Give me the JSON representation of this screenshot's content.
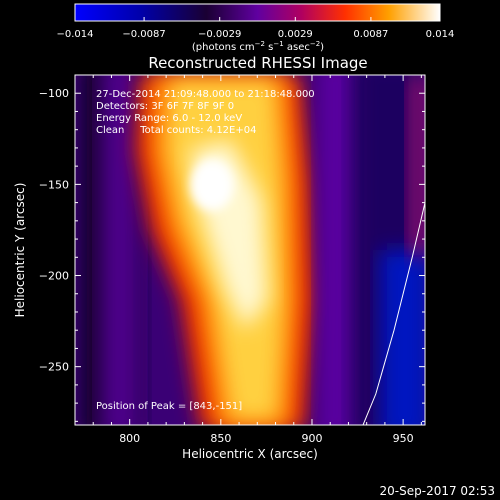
{
  "chart_data": {
    "type": "heatmap",
    "title": "Reconstructed RHESSI Image",
    "xlabel": "Heliocentric X (arcsec)",
    "ylabel": "Heliocentric Y (arcsec)",
    "xlim": [
      770,
      962
    ],
    "ylim": [
      -282,
      -90
    ],
    "x_ticks": [
      800,
      850,
      900,
      950
    ],
    "x_tick_labels": [
      "800",
      "850",
      "900",
      "950"
    ],
    "y_ticks": [
      -100,
      -150,
      -200,
      -250
    ],
    "y_tick_labels": [
      "−100",
      "−150",
      "−200",
      "−250"
    ],
    "colorbar": {
      "range": [
        -0.014,
        0.014
      ],
      "ticks": [
        -0.014,
        -0.0087,
        -0.0029,
        0.0029,
        0.0087,
        0.014
      ],
      "tick_labels": [
        "−0.014",
        "−0.0087",
        "−0.0029",
        "0.0029",
        "0.0087",
        "0.014"
      ],
      "units_html": "(photons cm<tspan baseline-shift='super' font-size='7'>−2</tspan> s<tspan baseline-shift='super' font-size='7'>−1</tspan> asec<tspan baseline-shift='super' font-size='7'>−2</tspan>)",
      "colors": [
        "#0000ff",
        "#0000aa",
        "#000040",
        "#1a0033",
        "#4d0099",
        "#8a0070",
        "#d11000",
        "#ff6000",
        "#ffb000",
        "#ffe060",
        "#ffffff"
      ]
    },
    "annotations": [
      "27-Dec-2014 21:09:48.000 to 21:18:48.000",
      "Detectors: 3F 6F 7F 8F 9F 0",
      "Energy Range: 6.0 - 12.0 keV",
      "Clean     Total counts: 4.12E+04"
    ],
    "peak_label": "Position of Peak = [843,-151]",
    "peak": [
      843,
      -151
    ],
    "structures": [
      {
        "kind": "bright_band",
        "x_center_top": 855,
        "x_center_bottom": 870,
        "width": 45,
        "value": 0.011
      },
      {
        "kind": "dark_band",
        "x_center": 930,
        "width": 25,
        "value": -0.006
      },
      {
        "kind": "dark_band",
        "x_center": 790,
        "width": 22,
        "value": -0.005
      }
    ],
    "limb_curve": [
      [
        962,
        -160
      ],
      [
        955,
        -190
      ],
      [
        945,
        -230
      ],
      [
        935,
        -265
      ],
      [
        928,
        -282
      ]
    ],
    "grid": false
  },
  "footer": {
    "timestamp": "20-Sep-2017 02:53"
  }
}
